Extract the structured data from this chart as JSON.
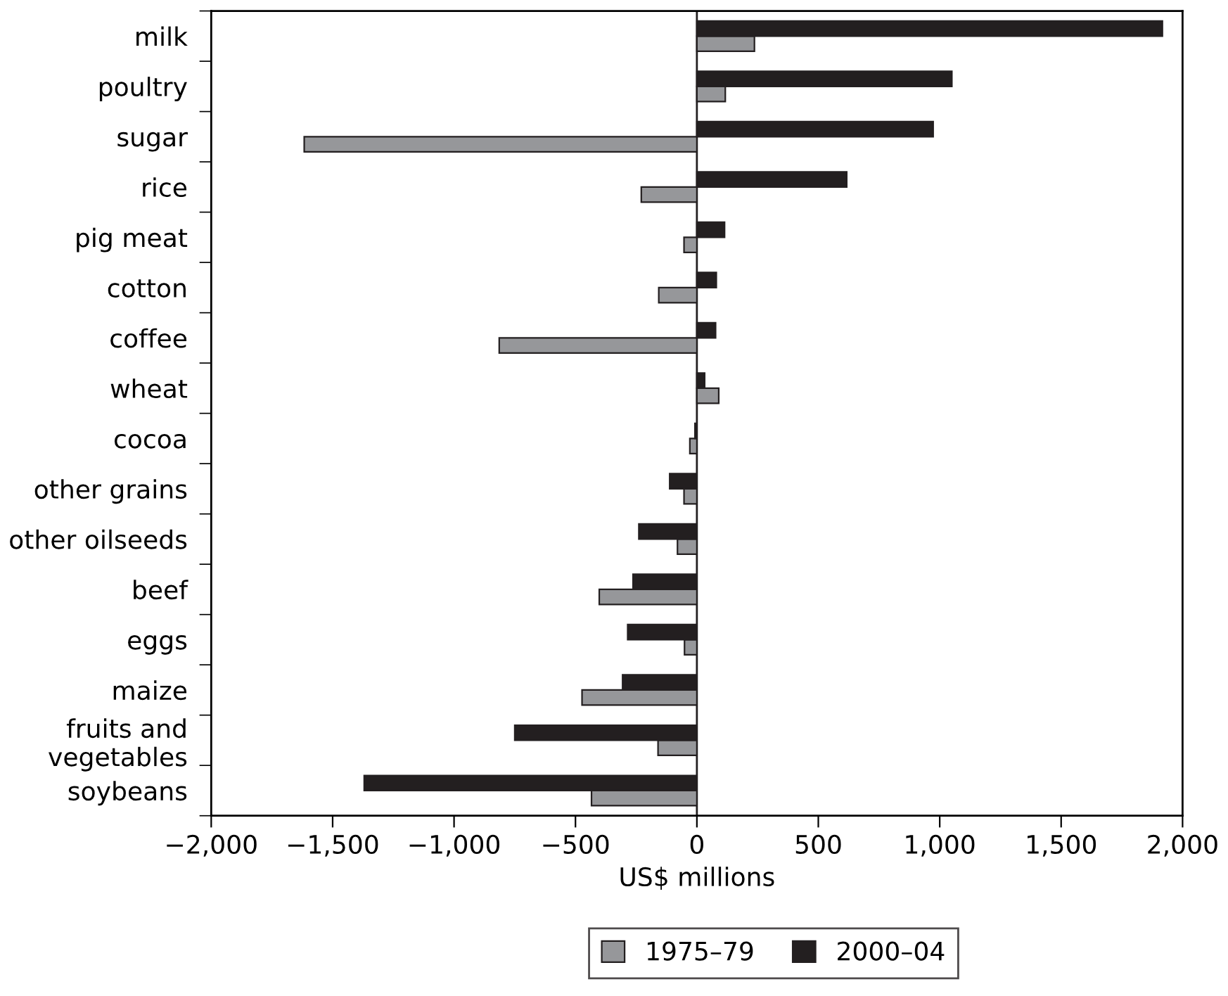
{
  "chart_data": {
    "type": "bar",
    "orientation": "horizontal",
    "xlabel": "US$ millions",
    "categories": [
      "milk",
      "poultry",
      "sugar",
      "rice",
      "pig meat",
      "cotton",
      "coffee",
      "wheat",
      "cocoa",
      "other grains",
      "other oilseeds",
      "beef",
      "eggs",
      "maize",
      "fruits and\nvegetables",
      "soybeans"
    ],
    "series": [
      {
        "name": "1975–79",
        "color": "#96979a",
        "values": [
          237,
          117,
          -1617,
          -229,
          -53,
          -157,
          -814,
          90,
          -29,
          -53,
          -80,
          -402,
          -51,
          -473,
          -160,
          -434
        ]
      },
      {
        "name": "2000–04",
        "color": "#231f20",
        "values": [
          1917,
          1050,
          973,
          617,
          114,
          80,
          77,
          32,
          -8,
          -112,
          -239,
          -263,
          -285,
          -306,
          -750,
          -1370
        ]
      }
    ],
    "xlim": [
      -2000,
      2000
    ],
    "xticks": [
      {
        "value": -2000,
        "label": "−2,000"
      },
      {
        "value": -1500,
        "label": "−1,500"
      },
      {
        "value": -1000,
        "label": "−1,000"
      },
      {
        "value": -500,
        "label": "−500"
      },
      0,
      500,
      {
        "value": 1000,
        "label": "1,000"
      },
      {
        "value": 1500,
        "label": "1,500"
      },
      {
        "value": 2000,
        "label": "2,000"
      }
    ],
    "ref_lines": [
      {
        "axis": "x",
        "value": 0,
        "color": "#231f20"
      }
    ],
    "grid": false,
    "legend": "bottom"
  }
}
